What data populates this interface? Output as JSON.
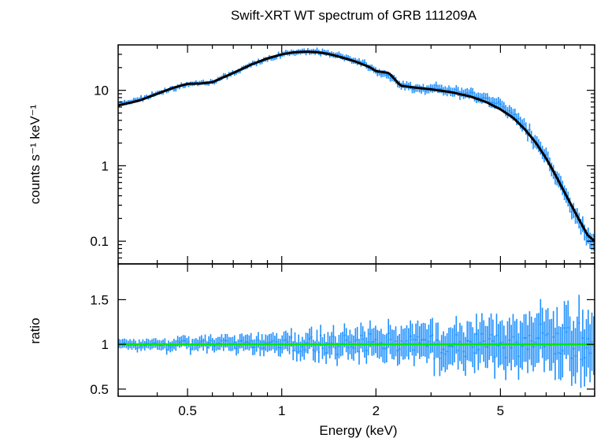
{
  "chart_data": [
    {
      "type": "line",
      "panel": "spectrum",
      "title": "Swift-XRT WT spectrum of GRB 111209A",
      "ylabel": "counts s⁻¹ keV⁻¹",
      "xscale": "log",
      "yscale": "log",
      "xlim": [
        0.3,
        10
      ],
      "ylim": [
        0.05,
        40
      ],
      "yticks": [
        {
          "value": 0.1,
          "label": "0.1"
        },
        {
          "value": 1,
          "label": "1"
        },
        {
          "value": 10,
          "label": "10"
        }
      ],
      "data_color": "#1e90ff",
      "model_color": "#000000",
      "series": [
        {
          "kind": "data",
          "x": [
            0.3,
            0.35,
            0.4,
            0.45,
            0.5,
            0.55,
            0.6,
            0.7,
            0.8,
            0.9,
            1.0,
            1.1,
            1.2,
            1.3,
            1.4,
            1.5,
            1.7,
            1.9,
            2.0,
            2.2,
            2.4,
            2.6,
            3.0,
            3.5,
            4.0,
            4.5,
            5.0,
            5.5,
            6.0,
            6.5,
            7.0,
            7.5,
            8.0,
            8.5,
            9.0,
            9.5,
            10.0
          ],
          "y": [
            6.5,
            7.5,
            9.0,
            10.5,
            12.0,
            12.5,
            13.0,
            17.0,
            22.0,
            26.0,
            30.0,
            32.0,
            33.0,
            32.5,
            31.0,
            29.0,
            25.0,
            21.0,
            18.0,
            15.5,
            11.5,
            11.0,
            10.5,
            9.8,
            8.8,
            7.5,
            6.0,
            4.6,
            3.2,
            2.1,
            1.3,
            0.75,
            0.45,
            0.28,
            0.18,
            0.12,
            0.08
          ]
        },
        {
          "kind": "model",
          "x": [
            0.3,
            0.35,
            0.4,
            0.45,
            0.5,
            0.55,
            0.6,
            0.7,
            0.8,
            0.9,
            1.0,
            1.1,
            1.2,
            1.3,
            1.4,
            1.5,
            1.7,
            1.9,
            2.0,
            2.2,
            2.4,
            2.6,
            3.0,
            3.5,
            4.0,
            4.5,
            5.0,
            5.5,
            6.0,
            6.5,
            7.0,
            7.5,
            8.0,
            8.5,
            9.0,
            9.5,
            10.0
          ],
          "y": [
            6.3,
            7.3,
            9.0,
            10.8,
            12.2,
            12.3,
            12.8,
            17.0,
            22.0,
            26.5,
            30.0,
            32.0,
            32.5,
            32.0,
            30.5,
            28.5,
            24.5,
            20.5,
            18.0,
            17.0,
            11.5,
            11.0,
            10.3,
            9.4,
            8.3,
            7.0,
            5.6,
            4.3,
            3.0,
            2.0,
            1.25,
            0.75,
            0.45,
            0.28,
            0.18,
            0.12,
            0.1
          ]
        }
      ]
    },
    {
      "type": "line",
      "panel": "ratio",
      "xlabel": "Energy (keV)",
      "ylabel": "ratio",
      "xscale": "log",
      "xlim": [
        0.3,
        10
      ],
      "ylim": [
        0.42,
        1.9
      ],
      "xticks": [
        {
          "value": 0.5,
          "label": "0.5"
        },
        {
          "value": 1,
          "label": "1"
        },
        {
          "value": 2,
          "label": "2"
        },
        {
          "value": 5,
          "label": "5"
        }
      ],
      "yticks": [
        {
          "value": 0.5,
          "label": "0.5"
        },
        {
          "value": 1,
          "label": "1"
        },
        {
          "value": 1.5,
          "label": "1.5"
        }
      ],
      "reference_line": 1,
      "reference_color": "#00e600",
      "data_color": "#1e90ff"
    }
  ]
}
